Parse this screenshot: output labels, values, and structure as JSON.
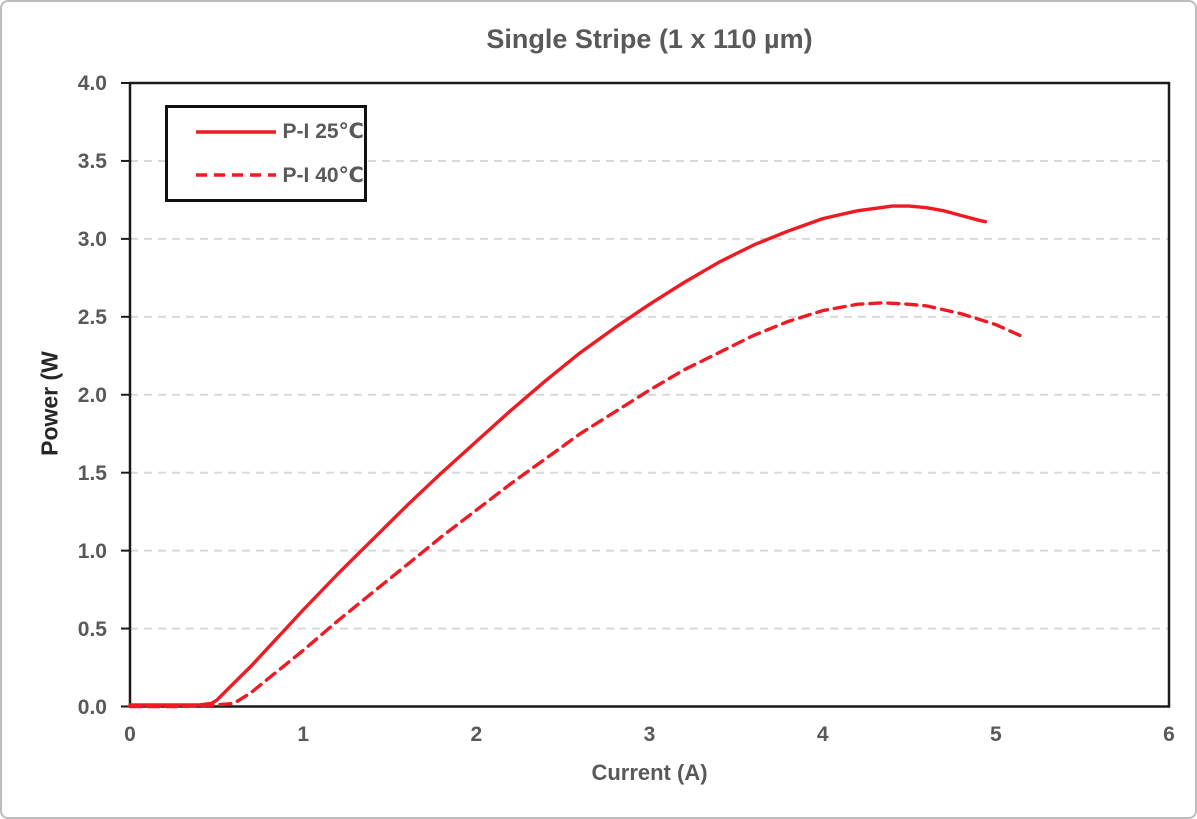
{
  "window": {
    "background": "#ffffff",
    "frame_border_color": "#bdbdbd"
  },
  "chart_data": {
    "type": "line",
    "title": "Single Stripe (1 x 110 µm)",
    "xlabel": "Current (A)",
    "ylabel": "Power (W",
    "xlim": [
      0,
      6
    ],
    "ylim": [
      0,
      4
    ],
    "x_ticks": [
      "0",
      "1",
      "2",
      "3",
      "4",
      "5",
      "6"
    ],
    "y_ticks": [
      "0.0",
      "0.5",
      "1.0",
      "1.5",
      "2.0",
      "2.5",
      "3.0",
      "3.5",
      "4.0"
    ],
    "grid": {
      "horizontal": true,
      "vertical": false,
      "style": "dashed",
      "color": "#d9d9d9",
      "interval": 0.5
    },
    "axis_color": "#1a1a1a",
    "legend": {
      "position": "top-left-inside",
      "border_color": "#111111",
      "background": "#ffffff"
    },
    "series": [
      {
        "name": "P-I 25℃",
        "style": "solid",
        "color": "#ed1c24",
        "points": [
          [
            0.0,
            0.01
          ],
          [
            0.1,
            0.01
          ],
          [
            0.2,
            0.01
          ],
          [
            0.3,
            0.01
          ],
          [
            0.4,
            0.01
          ],
          [
            0.47,
            0.02
          ],
          [
            0.5,
            0.04
          ],
          [
            0.6,
            0.15
          ],
          [
            0.7,
            0.26
          ],
          [
            0.8,
            0.38
          ],
          [
            0.9,
            0.5
          ],
          [
            1.0,
            0.62
          ],
          [
            1.2,
            0.85
          ],
          [
            1.4,
            1.07
          ],
          [
            1.6,
            1.29
          ],
          [
            1.8,
            1.5
          ],
          [
            2.0,
            1.7
          ],
          [
            2.2,
            1.9
          ],
          [
            2.4,
            2.09
          ],
          [
            2.6,
            2.27
          ],
          [
            2.8,
            2.43
          ],
          [
            3.0,
            2.58
          ],
          [
            3.2,
            2.72
          ],
          [
            3.4,
            2.85
          ],
          [
            3.6,
            2.96
          ],
          [
            3.8,
            3.05
          ],
          [
            4.0,
            3.13
          ],
          [
            4.2,
            3.18
          ],
          [
            4.4,
            3.21
          ],
          [
            4.5,
            3.21
          ],
          [
            4.6,
            3.2
          ],
          [
            4.7,
            3.18
          ],
          [
            4.8,
            3.15
          ],
          [
            4.9,
            3.12
          ],
          [
            4.94,
            3.11
          ]
        ]
      },
      {
        "name": "P-I 40℃",
        "style": "dashed",
        "color": "#ed1c24",
        "points": [
          [
            0.0,
            0.0
          ],
          [
            0.3,
            0.0
          ],
          [
            0.5,
            0.01
          ],
          [
            0.6,
            0.02
          ],
          [
            0.7,
            0.09
          ],
          [
            0.8,
            0.18
          ],
          [
            0.9,
            0.27
          ],
          [
            1.0,
            0.36
          ],
          [
            1.2,
            0.55
          ],
          [
            1.4,
            0.73
          ],
          [
            1.6,
            0.91
          ],
          [
            1.8,
            1.09
          ],
          [
            2.0,
            1.26
          ],
          [
            2.2,
            1.43
          ],
          [
            2.4,
            1.59
          ],
          [
            2.6,
            1.75
          ],
          [
            2.8,
            1.89
          ],
          [
            3.0,
            2.03
          ],
          [
            3.2,
            2.16
          ],
          [
            3.4,
            2.27
          ],
          [
            3.6,
            2.38
          ],
          [
            3.8,
            2.47
          ],
          [
            4.0,
            2.54
          ],
          [
            4.2,
            2.58
          ],
          [
            4.35,
            2.59
          ],
          [
            4.5,
            2.58
          ],
          [
            4.6,
            2.57
          ],
          [
            4.8,
            2.52
          ],
          [
            5.0,
            2.45
          ],
          [
            5.14,
            2.38
          ]
        ]
      }
    ]
  }
}
